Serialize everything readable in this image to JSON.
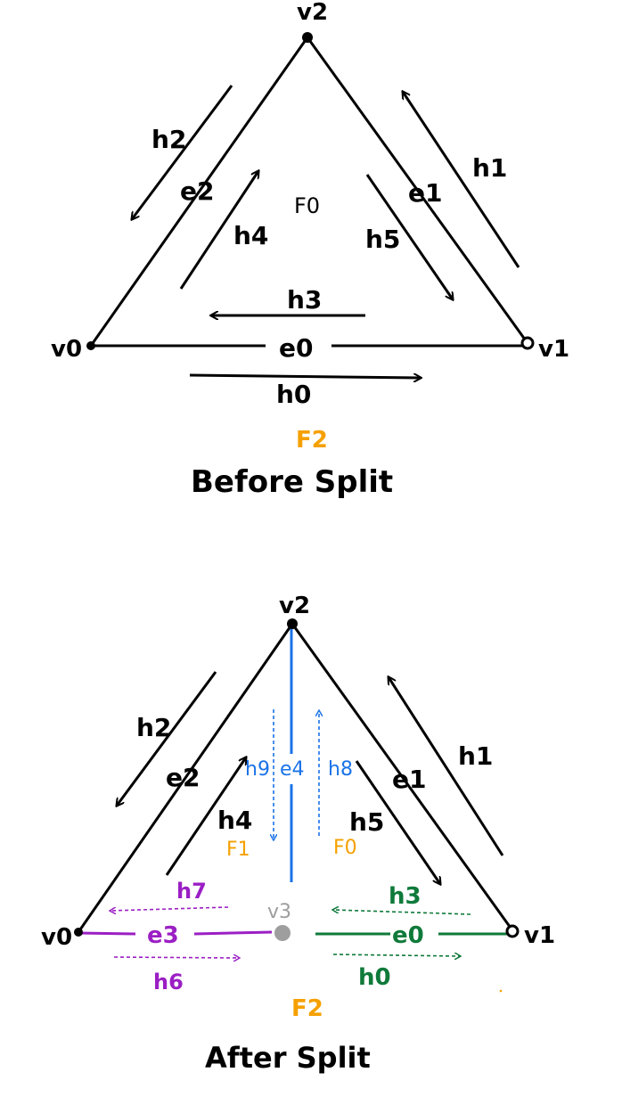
{
  "before": {
    "vertices": {
      "v0": "v0",
      "v1": "v1",
      "v2": "v2"
    },
    "edges": {
      "e0": "e0",
      "e1": "e1",
      "e2": "e2"
    },
    "halfedges": {
      "h0": "h0",
      "h1": "h1",
      "h2": "h2",
      "h3": "h3",
      "h4": "h4",
      "h5": "h5"
    },
    "faces": {
      "f0": "F0",
      "f2": "F2"
    },
    "caption": "Before Split"
  },
  "after": {
    "vertices": {
      "v0": "v0",
      "v1": "v1",
      "v2": "v2",
      "v3": "v3"
    },
    "edges": {
      "e0": "e0",
      "e1": "e1",
      "e2": "e2",
      "e3": "e3",
      "e4": "e4"
    },
    "halfedges": {
      "h0": "h0",
      "h1": "h1",
      "h2": "h2",
      "h3": "h3",
      "h4": "h4",
      "h5": "h5",
      "h6": "h6",
      "h7": "h7",
      "h8": "h8",
      "h9": "h9"
    },
    "faces": {
      "f0": "F0",
      "f1": "F1",
      "f2": "F2"
    },
    "caption": "After Split"
  },
  "colors": {
    "ink": "#000000",
    "face": "#f5a000",
    "blue": "#1a73e8",
    "purple": "#9b1fc4",
    "green": "#0f7a3a",
    "gray": "#9e9e9e"
  }
}
